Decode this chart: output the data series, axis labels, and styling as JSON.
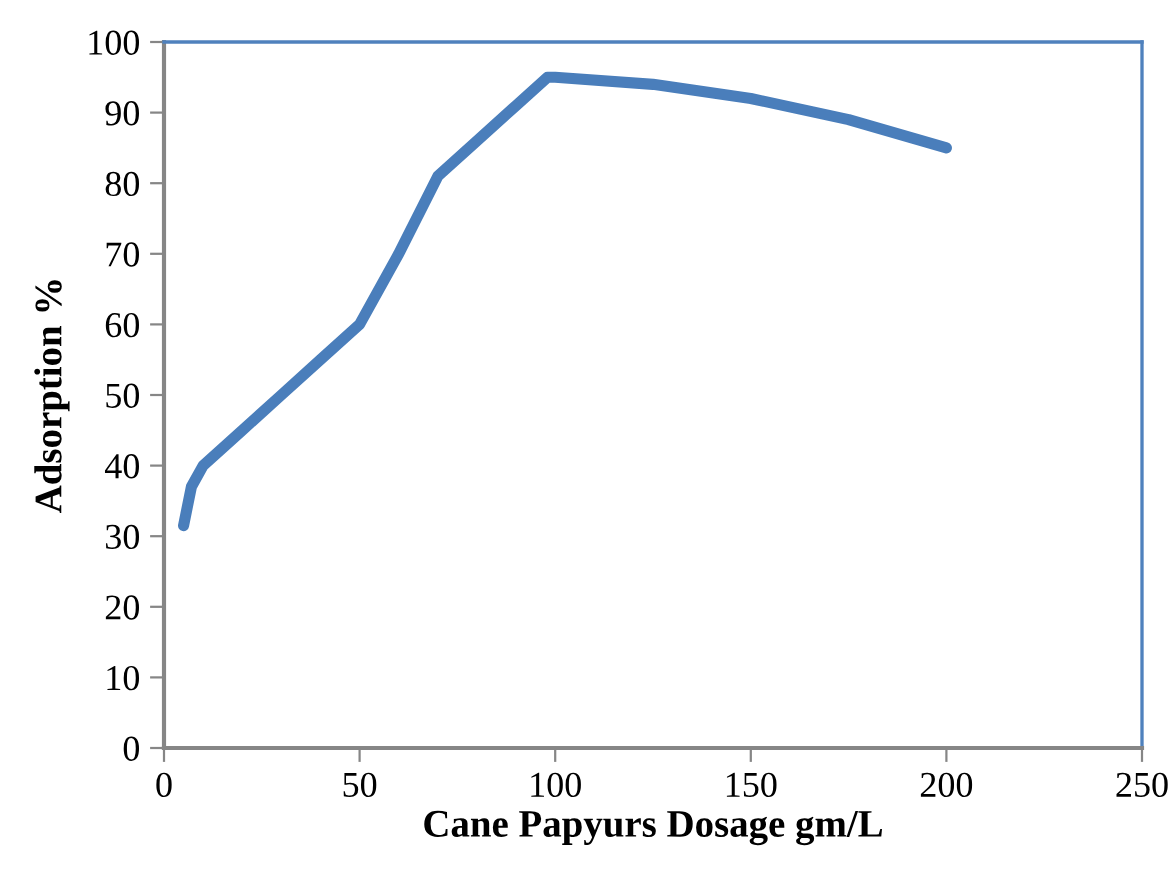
{
  "chart_data": {
    "type": "line",
    "xlabel": "Cane Papyurs Dosage gm/L",
    "ylabel": "Adsorption %",
    "series": [
      {
        "color": "#4a7ebb",
        "x": [
          5,
          7,
          10,
          20,
          30,
          40,
          50,
          60,
          70,
          80,
          90,
          98,
          100,
          125,
          150,
          175,
          200
        ],
        "values": [
          31.5,
          37,
          40,
          45,
          50,
          55,
          60,
          70,
          81,
          86,
          91,
          95,
          95,
          94,
          92,
          89,
          85
        ]
      }
    ],
    "xlim": [
      0,
      250
    ],
    "xticks": [
      0,
      50,
      100,
      150,
      200,
      250
    ],
    "ylim": [
      0,
      100
    ],
    "yticks": [
      0,
      10,
      20,
      30,
      40,
      50,
      60,
      70,
      80,
      90,
      100
    ],
    "grid": false,
    "marker": "none",
    "line_style": "solid"
  }
}
